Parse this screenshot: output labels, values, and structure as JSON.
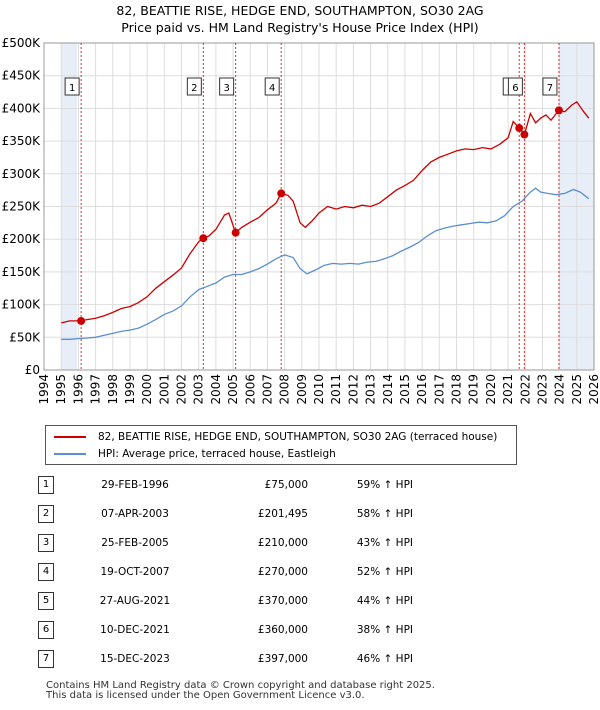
{
  "title": {
    "line1": "82, BEATTIE RISE, HEDGE END, SOUTHAMPTON, SO30 2AG",
    "line2": "Price paid vs. HM Land Registry's House Price Index (HPI)"
  },
  "chart_data": {
    "type": "line",
    "title": "82, BEATTIE RISE, HEDGE END, SOUTHAMPTON, SO30 2AG — Price paid vs. HM Land Registry's House Price Index (HPI)",
    "xlim": [
      1995,
      2026
    ],
    "ylim": [
      0,
      500000
    ],
    "x_ticks": [
      "1994",
      "1995",
      "1996",
      "1997",
      "1998",
      "1999",
      "2000",
      "2001",
      "2002",
      "2003",
      "2004",
      "2005",
      "2006",
      "2007",
      "2008",
      "2009",
      "2010",
      "2011",
      "2012",
      "2013",
      "2014",
      "2015",
      "2016",
      "2017",
      "2018",
      "2019",
      "2020",
      "2021",
      "2022",
      "2023",
      "2024",
      "2025",
      "2026"
    ],
    "y_ticks": [
      {
        "value": 0,
        "label": "£0"
      },
      {
        "value": 50000,
        "label": "£50K"
      },
      {
        "value": 100000,
        "label": "£100K"
      },
      {
        "value": 150000,
        "label": "£150K"
      },
      {
        "value": 200000,
        "label": "£200K"
      },
      {
        "value": 250000,
        "label": "£250K"
      },
      {
        "value": 300000,
        "label": "£300K"
      },
      {
        "value": 350000,
        "label": "£350K"
      },
      {
        "value": 400000,
        "label": "£400K"
      },
      {
        "value": 450000,
        "label": "£450K"
      },
      {
        "value": 500000,
        "label": "£500K"
      }
    ],
    "series": [
      {
        "name": "82, BEATTIE RISE, HEDGE END, SOUTHAMPTON, SO30 2AG (terraced house)",
        "color": "#cc0000",
        "points": [
          [
            1995.0,
            72000
          ],
          [
            1995.5,
            75000
          ],
          [
            1996.16,
            75000
          ],
          [
            1996.5,
            77000
          ],
          [
            1997.0,
            79000
          ],
          [
            1997.5,
            83000
          ],
          [
            1998.0,
            88000
          ],
          [
            1998.5,
            94000
          ],
          [
            1999.0,
            97000
          ],
          [
            1999.5,
            103000
          ],
          [
            2000.0,
            112000
          ],
          [
            2000.5,
            125000
          ],
          [
            2001.0,
            135000
          ],
          [
            2001.5,
            145000
          ],
          [
            2002.0,
            156000
          ],
          [
            2002.5,
            178000
          ],
          [
            2003.0,
            196000
          ],
          [
            2003.27,
            201495
          ],
          [
            2003.6,
            205000
          ],
          [
            2004.0,
            215000
          ],
          [
            2004.5,
            237000
          ],
          [
            2004.75,
            240000
          ],
          [
            2005.15,
            210000
          ],
          [
            2005.5,
            218000
          ],
          [
            2006.0,
            226000
          ],
          [
            2006.5,
            233000
          ],
          [
            2007.0,
            245000
          ],
          [
            2007.5,
            255000
          ],
          [
            2007.8,
            270000
          ],
          [
            2008.2,
            267000
          ],
          [
            2008.5,
            258000
          ],
          [
            2008.9,
            225000
          ],
          [
            2009.2,
            218000
          ],
          [
            2009.6,
            228000
          ],
          [
            2010.0,
            240000
          ],
          [
            2010.5,
            250000
          ],
          [
            2011.0,
            246000
          ],
          [
            2011.5,
            250000
          ],
          [
            2012.0,
            248000
          ],
          [
            2012.5,
            252000
          ],
          [
            2013.0,
            250000
          ],
          [
            2013.5,
            255000
          ],
          [
            2014.0,
            265000
          ],
          [
            2014.5,
            275000
          ],
          [
            2015.0,
            282000
          ],
          [
            2015.5,
            290000
          ],
          [
            2016.0,
            305000
          ],
          [
            2016.5,
            318000
          ],
          [
            2017.0,
            325000
          ],
          [
            2017.5,
            330000
          ],
          [
            2018.0,
            335000
          ],
          [
            2018.5,
            338000
          ],
          [
            2019.0,
            337000
          ],
          [
            2019.5,
            340000
          ],
          [
            2020.0,
            338000
          ],
          [
            2020.5,
            345000
          ],
          [
            2021.0,
            355000
          ],
          [
            2021.3,
            380000
          ],
          [
            2021.65,
            370000
          ],
          [
            2021.95,
            360000
          ],
          [
            2022.3,
            392000
          ],
          [
            2022.6,
            378000
          ],
          [
            2022.9,
            385000
          ],
          [
            2023.2,
            390000
          ],
          [
            2023.5,
            382000
          ],
          [
            2023.96,
            397000
          ],
          [
            2024.3,
            395000
          ],
          [
            2024.7,
            405000
          ],
          [
            2025.0,
            410000
          ],
          [
            2025.4,
            395000
          ],
          [
            2025.7,
            385000
          ]
        ]
      },
      {
        "name": "HPI: Average price, terraced house, Eastleigh",
        "color": "#5b8fd0",
        "points": [
          [
            1995.0,
            47000
          ],
          [
            1995.5,
            47000
          ],
          [
            1996.0,
            48000
          ],
          [
            1996.5,
            49000
          ],
          [
            1997.0,
            50000
          ],
          [
            1997.5,
            53000
          ],
          [
            1998.0,
            56000
          ],
          [
            1998.5,
            59000
          ],
          [
            1999.0,
            61000
          ],
          [
            1999.5,
            64000
          ],
          [
            2000.0,
            70000
          ],
          [
            2000.5,
            77000
          ],
          [
            2001.0,
            85000
          ],
          [
            2001.5,
            90000
          ],
          [
            2002.0,
            98000
          ],
          [
            2002.5,
            112000
          ],
          [
            2003.0,
            123000
          ],
          [
            2003.5,
            128000
          ],
          [
            2004.0,
            133000
          ],
          [
            2004.5,
            142000
          ],
          [
            2005.0,
            146000
          ],
          [
            2005.5,
            146000
          ],
          [
            2006.0,
            150000
          ],
          [
            2006.5,
            155000
          ],
          [
            2007.0,
            162000
          ],
          [
            2007.5,
            170000
          ],
          [
            2008.0,
            176000
          ],
          [
            2008.5,
            172000
          ],
          [
            2008.9,
            155000
          ],
          [
            2009.3,
            147000
          ],
          [
            2009.8,
            153000
          ],
          [
            2010.3,
            160000
          ],
          [
            2010.8,
            163000
          ],
          [
            2011.3,
            162000
          ],
          [
            2011.8,
            163000
          ],
          [
            2012.3,
            162000
          ],
          [
            2012.8,
            165000
          ],
          [
            2013.3,
            166000
          ],
          [
            2013.8,
            170000
          ],
          [
            2014.3,
            175000
          ],
          [
            2014.8,
            182000
          ],
          [
            2015.3,
            188000
          ],
          [
            2015.8,
            195000
          ],
          [
            2016.3,
            205000
          ],
          [
            2016.8,
            213000
          ],
          [
            2017.3,
            217000
          ],
          [
            2017.8,
            220000
          ],
          [
            2018.3,
            222000
          ],
          [
            2018.8,
            224000
          ],
          [
            2019.3,
            226000
          ],
          [
            2019.8,
            225000
          ],
          [
            2020.3,
            228000
          ],
          [
            2020.8,
            236000
          ],
          [
            2021.3,
            250000
          ],
          [
            2021.8,
            258000
          ],
          [
            2022.3,
            272000
          ],
          [
            2022.6,
            278000
          ],
          [
            2022.9,
            272000
          ],
          [
            2023.3,
            270000
          ],
          [
            2023.8,
            268000
          ],
          [
            2024.3,
            270000
          ],
          [
            2024.8,
            276000
          ],
          [
            2025.2,
            272000
          ],
          [
            2025.7,
            262000
          ]
        ]
      }
    ],
    "sales": [
      {
        "num": "1",
        "x": 1996.16,
        "price": 75000
      },
      {
        "num": "2",
        "x": 2003.27,
        "price": 201495
      },
      {
        "num": "3",
        "x": 2005.15,
        "price": 210000
      },
      {
        "num": "4",
        "x": 2007.8,
        "price": 270000
      },
      {
        "num": "5",
        "x": 2021.65,
        "price": 370000
      },
      {
        "num": "6",
        "x": 2021.95,
        "price": 360000
      },
      {
        "num": "7",
        "x": 2023.96,
        "price": 397000
      }
    ],
    "shaded_ranges": [
      [
        1995.0,
        1995.92
      ],
      [
        2024.0,
        2026.0
      ]
    ],
    "colors": {
      "property": "#cc0000",
      "hpi": "#5b8fd0",
      "grid": "#dddddd",
      "shade": "#e8eef8",
      "event_line": "#cc0000"
    }
  },
  "legend": {
    "property_label": "82, BEATTIE RISE, HEDGE END, SOUTHAMPTON, SO30 2AG (terraced house)",
    "hpi_label": "HPI: Average price, terraced house, Eastleigh"
  },
  "table": {
    "rows": [
      {
        "num": "1",
        "date": "29-FEB-1996",
        "price": "£75,000",
        "hpi": "59% ↑ HPI"
      },
      {
        "num": "2",
        "date": "07-APR-2003",
        "price": "£201,495",
        "hpi": "58% ↑ HPI"
      },
      {
        "num": "3",
        "date": "25-FEB-2005",
        "price": "£210,000",
        "hpi": "43% ↑ HPI"
      },
      {
        "num": "4",
        "date": "19-OCT-2007",
        "price": "£270,000",
        "hpi": "52% ↑ HPI"
      },
      {
        "num": "5",
        "date": "27-AUG-2021",
        "price": "£370,000",
        "hpi": "44% ↑ HPI"
      },
      {
        "num": "6",
        "date": "10-DEC-2021",
        "price": "£360,000",
        "hpi": "38% ↑ HPI"
      },
      {
        "num": "7",
        "date": "15-DEC-2023",
        "price": "£397,000",
        "hpi": "46% ↑ HPI"
      }
    ]
  },
  "footer": {
    "line1": "Contains HM Land Registry data © Crown copyright and database right 2025.",
    "line2": "This data is licensed under the Open Government Licence v3.0."
  }
}
